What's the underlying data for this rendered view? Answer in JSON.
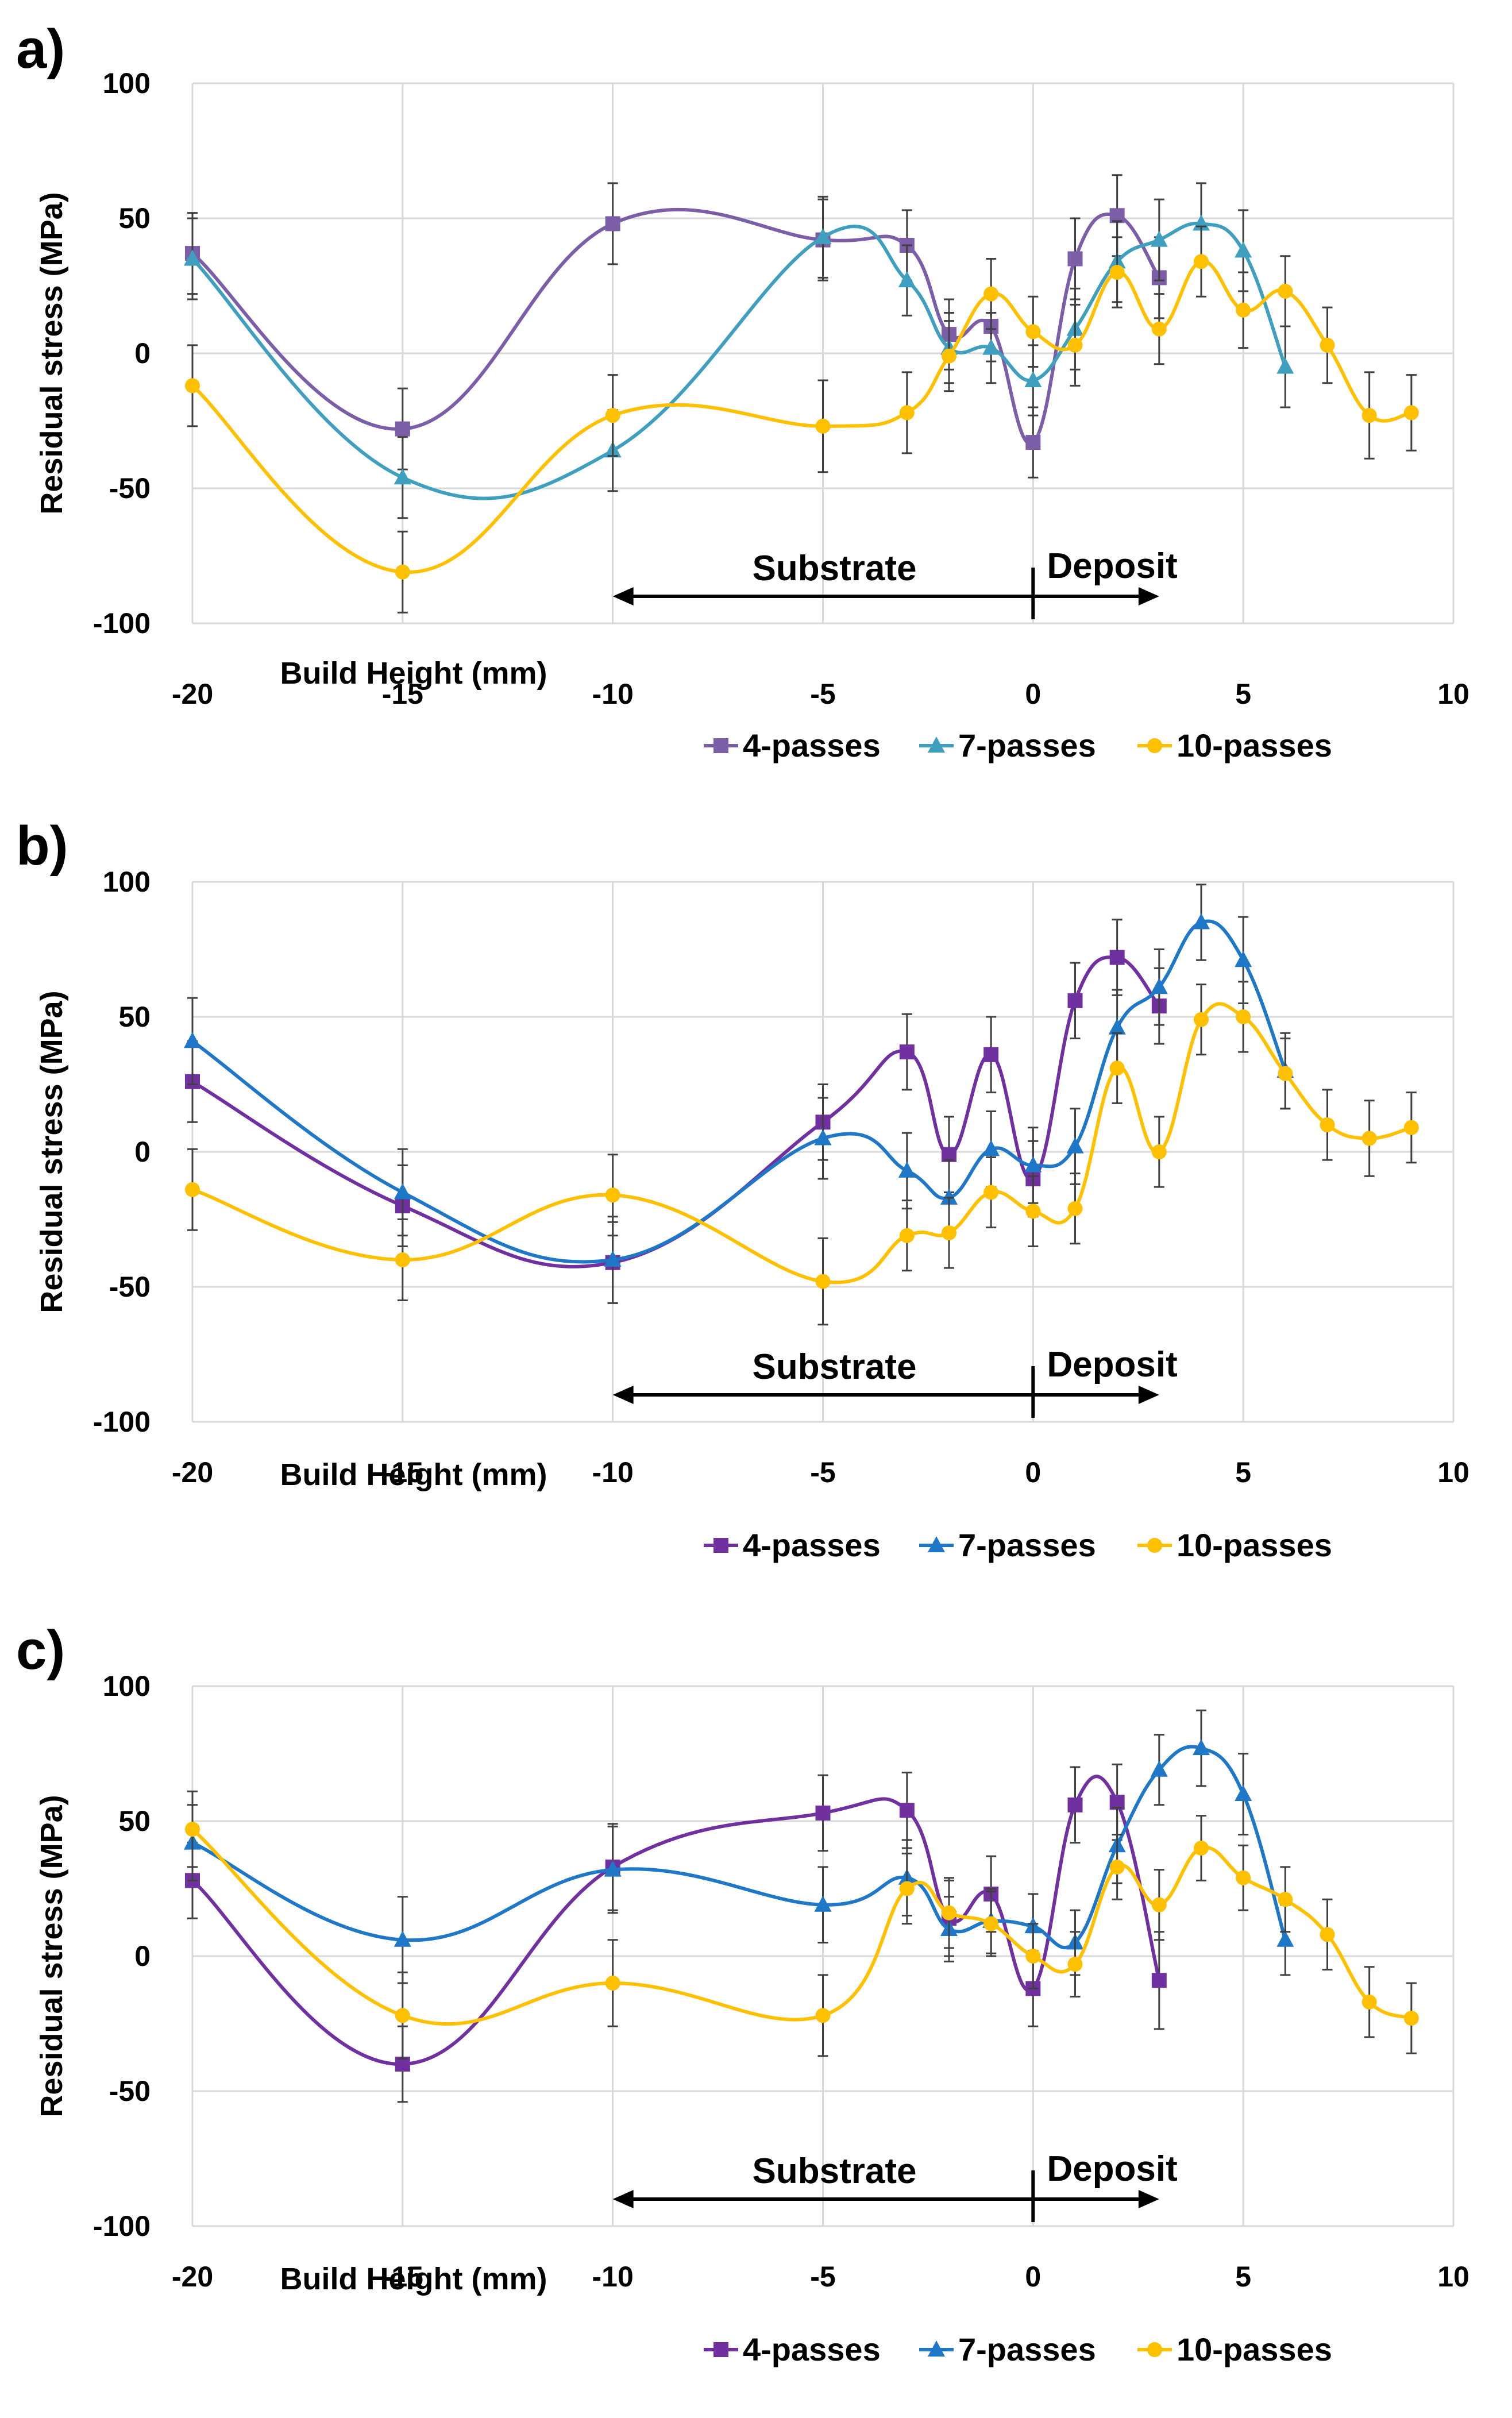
{
  "colors": {
    "passes4_a": "#7b5ea7",
    "passes7_a": "#3f9fbf",
    "passes4": "#7030a0",
    "passes7": "#1f77c8",
    "passes10": "#ffc000",
    "grid": "#d9d9d9",
    "axis": "#000000",
    "errorbar": "#404040"
  },
  "chart_data": [
    {
      "type": "line",
      "panel_label": "a)",
      "xlabel": "Build Height (mm)",
      "ylabel": "Residual stress (MPa)",
      "xlim": [
        -20,
        10
      ],
      "ylim": [
        -100,
        100
      ],
      "x_ticks": [
        -20,
        -15,
        -10,
        -5,
        0,
        5,
        10
      ],
      "y_ticks": [
        -100,
        -50,
        0,
        50,
        100
      ],
      "x_tick_labels": [
        "-20",
        "-15",
        "-10",
        "-5",
        "0",
        "5",
        "10"
      ],
      "y_tick_labels": [
        "-100",
        "-50",
        "0",
        "50",
        "100"
      ],
      "annotations": {
        "substrate": "Substrate",
        "deposit": "Deposit",
        "arrow_from": -10,
        "arrow_split": 0,
        "arrow_to": 3
      },
      "series": [
        {
          "name": "4-passes",
          "marker": "square",
          "color": "#7b5ea7",
          "x": [
            -20,
            -15,
            -10,
            -5,
            -3,
            -2,
            -1,
            0,
            1,
            2,
            3
          ],
          "y": [
            37,
            -28,
            48,
            42,
            40,
            7,
            10,
            -33,
            35,
            51,
            28
          ],
          "err": [
            15,
            15,
            15,
            15,
            13,
            13,
            13,
            13,
            15,
            15,
            15
          ]
        },
        {
          "name": "7-passes",
          "marker": "triangle",
          "color": "#3f9fbf",
          "x": [
            -20,
            -15,
            -10,
            -5,
            -3,
            -2,
            -1,
            0,
            1,
            2,
            3,
            4,
            5,
            6
          ],
          "y": [
            35,
            -46,
            -36,
            43,
            27,
            2,
            2,
            -10,
            9,
            34,
            42,
            48,
            38,
            -5
          ],
          "err": [
            15,
            15,
            15,
            15,
            13,
            13,
            13,
            13,
            15,
            15,
            15,
            15,
            15,
            15
          ]
        },
        {
          "name": "10-passes",
          "marker": "circle",
          "color": "#ffc000",
          "x": [
            -20,
            -15,
            -10,
            -5,
            -3,
            -2,
            -1,
            0,
            1,
            2,
            3,
            4,
            5,
            6,
            7,
            8,
            9
          ],
          "y": [
            -12,
            -81,
            -23,
            -27,
            -22,
            -1,
            22,
            8,
            3,
            30,
            9,
            34,
            16,
            23,
            3,
            -23,
            -22
          ],
          "err": [
            15,
            15,
            15,
            17,
            15,
            13,
            13,
            13,
            15,
            13,
            13,
            13,
            14,
            13,
            14,
            16,
            14
          ]
        }
      ]
    },
    {
      "type": "line",
      "panel_label": "b)",
      "xlabel": "Build Height (mm)",
      "ylabel": "Residual stress (MPa)",
      "xlim": [
        -20,
        10
      ],
      "ylim": [
        -100,
        100
      ],
      "x_ticks": [
        -20,
        -15,
        -10,
        -5,
        0,
        5,
        10
      ],
      "y_ticks": [
        -100,
        -50,
        0,
        50,
        100
      ],
      "x_tick_labels": [
        "-20",
        "-15",
        "-10",
        "-5",
        "0",
        "5",
        "10"
      ],
      "y_tick_labels": [
        "-100",
        "-50",
        "0",
        "50",
        "100"
      ],
      "annotations": {
        "substrate": "Substrate",
        "deposit": "Deposit",
        "arrow_from": -10,
        "arrow_split": 0,
        "arrow_to": 3
      },
      "series": [
        {
          "name": "4-passes",
          "marker": "square",
          "color": "#7030a0",
          "x": [
            -20,
            -15,
            -10,
            -5,
            -3,
            -2,
            -1,
            0,
            1,
            2,
            3
          ],
          "y": [
            26,
            -20,
            -41,
            11,
            37,
            -1,
            36,
            -10,
            56,
            72,
            54
          ],
          "err": [
            15,
            15,
            15,
            14,
            14,
            14,
            14,
            14,
            14,
            14,
            14
          ]
        },
        {
          "name": "7-passes",
          "marker": "triangle",
          "color": "#1f77c8",
          "x": [
            -20,
            -15,
            -10,
            -5,
            -3,
            -2,
            -1,
            0,
            1,
            2,
            3,
            4,
            5,
            6
          ],
          "y": [
            41,
            -15,
            -40,
            5,
            -7,
            -17,
            1,
            -5,
            2,
            46,
            61,
            85,
            71,
            30
          ],
          "err": [
            16,
            16,
            16,
            15,
            14,
            14,
            14,
            14,
            14,
            14,
            14,
            14,
            16,
            14
          ]
        },
        {
          "name": "10-passes",
          "marker": "circle",
          "color": "#ffc000",
          "x": [
            -20,
            -15,
            -10,
            -5,
            -3,
            -2,
            -1,
            0,
            1,
            2,
            3,
            4,
            5,
            6,
            7,
            8,
            9
          ],
          "y": [
            -14,
            -40,
            -16,
            -48,
            -31,
            -30,
            -15,
            -22,
            -21,
            31,
            0,
            49,
            50,
            29,
            10,
            5,
            9
          ],
          "err": [
            15,
            15,
            15,
            16,
            13,
            13,
            13,
            13,
            13,
            13,
            13,
            13,
            13,
            13,
            13,
            14,
            13
          ]
        }
      ]
    },
    {
      "type": "line",
      "panel_label": "c)",
      "xlabel": "Build Height (mm)",
      "ylabel": "Residual stress (MPa)",
      "xlim": [
        -20,
        10
      ],
      "ylim": [
        -100,
        100
      ],
      "x_ticks": [
        -20,
        -15,
        -10,
        -5,
        0,
        5,
        10
      ],
      "y_ticks": [
        -100,
        -50,
        0,
        50,
        100
      ],
      "x_tick_labels": [
        "-20",
        "-15",
        "-10",
        "-5",
        "0",
        "5",
        "10"
      ],
      "y_tick_labels": [
        "-100",
        "-50",
        "0",
        "50",
        "100"
      ],
      "annotations": {
        "substrate": "Substrate",
        "deposit": "Deposit",
        "arrow_from": -10,
        "arrow_split": 0,
        "arrow_to": 3
      },
      "series": [
        {
          "name": "4-passes",
          "marker": "square",
          "color": "#7030a0",
          "x": [
            -20,
            -15,
            -10,
            -5,
            -3,
            -2,
            -1,
            0,
            1,
            2,
            3
          ],
          "y": [
            28,
            -40,
            33,
            53,
            54,
            14,
            23,
            -12,
            56,
            57,
            -9
          ],
          "err": [
            14,
            14,
            16,
            14,
            14,
            14,
            14,
            14,
            14,
            14,
            18
          ]
        },
        {
          "name": "7-passes",
          "marker": "triangle",
          "color": "#1f77c8",
          "x": [
            -20,
            -15,
            -10,
            -5,
            -3,
            -2,
            -1,
            0,
            1,
            2,
            3,
            4,
            5,
            6
          ],
          "y": [
            42,
            6,
            32,
            19,
            29,
            10,
            13,
            11,
            5,
            41,
            69,
            77,
            60,
            6
          ],
          "err": [
            14,
            16,
            16,
            14,
            14,
            12,
            12,
            12,
            12,
            14,
            13,
            14,
            15,
            13
          ]
        },
        {
          "name": "10-passes",
          "marker": "circle",
          "color": "#ffc000",
          "x": [
            -20,
            -15,
            -10,
            -5,
            -3,
            -2,
            -1,
            0,
            1,
            2,
            3,
            4,
            5,
            6,
            7,
            8,
            9
          ],
          "y": [
            47,
            -22,
            -10,
            -22,
            25,
            16,
            12,
            0,
            -3,
            33,
            19,
            40,
            29,
            21,
            8,
            -17,
            -23
          ],
          "err": [
            14,
            16,
            16,
            15,
            13,
            13,
            12,
            12,
            12,
            12,
            13,
            12,
            12,
            12,
            13,
            13,
            13
          ]
        }
      ]
    }
  ]
}
